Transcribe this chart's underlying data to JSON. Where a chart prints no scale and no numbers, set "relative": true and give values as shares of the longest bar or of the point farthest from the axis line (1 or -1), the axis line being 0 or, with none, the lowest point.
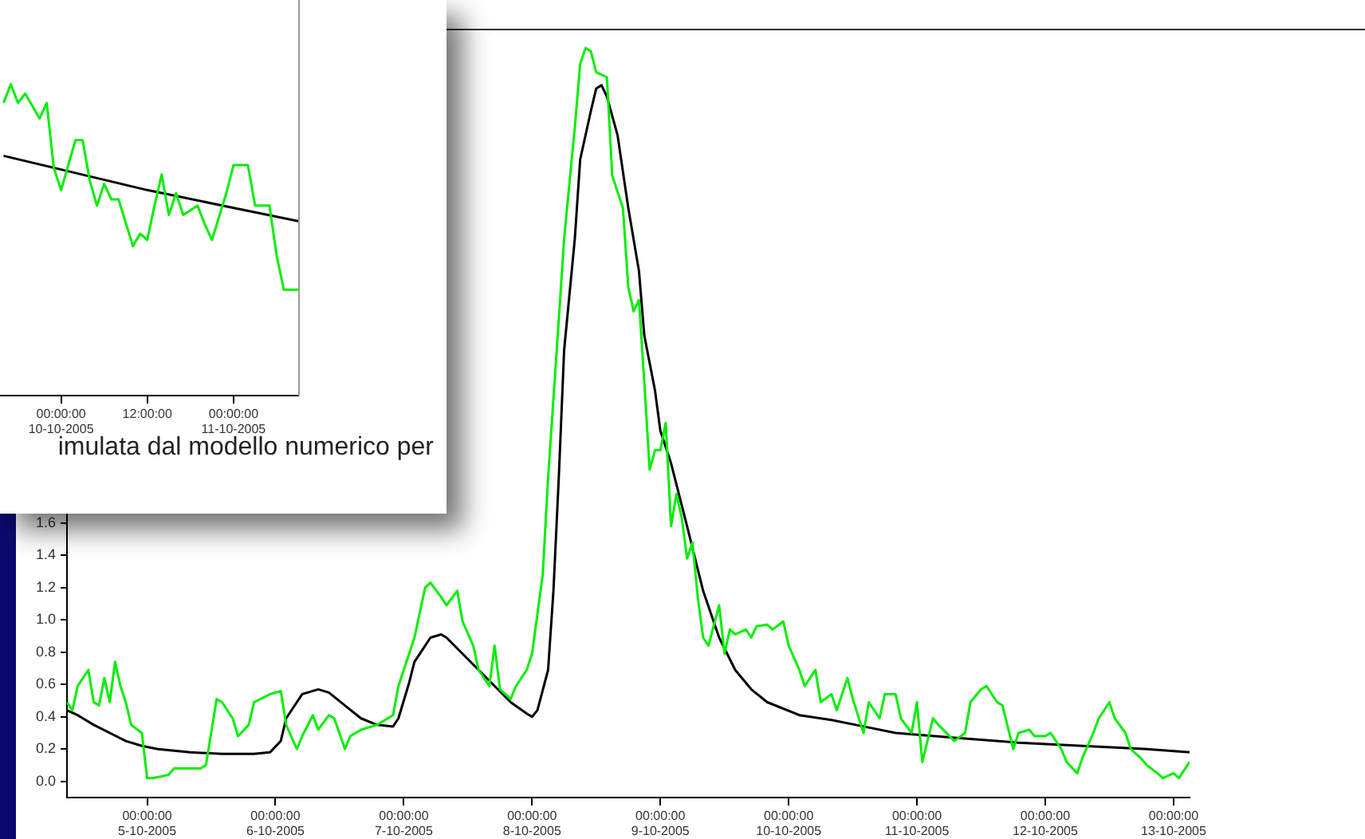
{
  "chart_data": [
    {
      "type": "line",
      "xlim": [
        "2005-10-04T09:00",
        "2005-10-13T03:00"
      ],
      "ylim": [
        -0.1,
        4.66
      ],
      "xticks": [
        {
          "value": "2005-10-05",
          "label": "00:00:00\n5-10-2005"
        },
        {
          "value": "2005-10-06",
          "label": "00:00:00\n6-10-2005"
        },
        {
          "value": "2005-10-07",
          "label": "00:00:00\n7-10-2005"
        },
        {
          "value": "2005-10-08",
          "label": "00:00:00\n8-10-2005"
        },
        {
          "value": "2005-10-09",
          "label": "00:00:00\n9-10-2005"
        },
        {
          "value": "2005-10-10",
          "label": "00:00:00\n10-10-2005"
        },
        {
          "value": "2005-10-11",
          "label": "00:00:00\n11-10-2005"
        },
        {
          "value": "2005-10-12",
          "label": "00:00:00\n12-10-2005"
        },
        {
          "value": "2005-10-13",
          "label": "00:00:00\n13-10-2005"
        }
      ],
      "yticks": [
        {
          "value": 0,
          "label": "0.0"
        },
        {
          "value": 0.2,
          "label": "0.2"
        },
        {
          "value": 0.4,
          "label": "0.4"
        },
        {
          "value": 0.6,
          "label": "0.6"
        },
        {
          "value": 0.8,
          "label": "0.8"
        },
        {
          "value": 1,
          "label": "1.0"
        },
        {
          "value": 1.2,
          "label": "1.2"
        },
        {
          "value": 1.4,
          "label": "1.4"
        },
        {
          "value": 1.6,
          "label": "1.6"
        }
      ],
      "marker": "none",
      "line_style": "solid",
      "series": [
        {
          "color": "#00ee00",
          "x": [
            "2005-10-04T09:00",
            "2005-10-04T10:00",
            "2005-10-04T11:00",
            "2005-10-04T13:00",
            "2005-10-04T14:00",
            "2005-10-04T15:00",
            "2005-10-04T16:00",
            "2005-10-04T17:00",
            "2005-10-04T18:00",
            "2005-10-04T19:00",
            "2005-10-04T20:00",
            "2005-10-04T21:00",
            "2005-10-04T23:00",
            "2005-10-05T00:00",
            "2005-10-05T01:00",
            "2005-10-05T04:00",
            "2005-10-05T05:00",
            "2005-10-05T10:00",
            "2005-10-05T11:00",
            "2005-10-05T13:00",
            "2005-10-05T14:00",
            "2005-10-05T16:00",
            "2005-10-05T17:00",
            "2005-10-05T19:00",
            "2005-10-05T20:00",
            "2005-10-05T23:00",
            "2005-10-06T01:00",
            "2005-10-06T02:00",
            "2005-10-06T04:00",
            "2005-10-06T05:00",
            "2005-10-06T07:00",
            "2005-10-06T08:00",
            "2005-10-06T10:00",
            "2005-10-06T11:00",
            "2005-10-06T13:00",
            "2005-10-06T14:00",
            "2005-10-06T16:00",
            "2005-10-06T19:00",
            "2005-10-06T22:00",
            "2005-10-06T23:00",
            "2005-10-07T01:00",
            "2005-10-07T02:00",
            "2005-10-07T04:00",
            "2005-10-07T05:00",
            "2005-10-07T07:00",
            "2005-10-07T08:00",
            "2005-10-07T10:00",
            "2005-10-07T11:00",
            "2005-10-07T13:00",
            "2005-10-07T14:00",
            "2005-10-07T16:00",
            "2005-10-07T17:00",
            "2005-10-07T18:00",
            "2005-10-07T19:00",
            "2005-10-07T20:00",
            "2005-10-07T21:00",
            "2005-10-07T23:00",
            "2005-10-08T00:00",
            "2005-10-08T02:00",
            "2005-10-08T03:00",
            "2005-10-08T05:00",
            "2005-10-08T06:00",
            "2005-10-08T08:00",
            "2005-10-08T09:00",
            "2005-10-08T10:00",
            "2005-10-08T11:00",
            "2005-10-08T12:00",
            "2005-10-08T14:00",
            "2005-10-08T15:00",
            "2005-10-08T17:00",
            "2005-10-08T18:00",
            "2005-10-08T19:00",
            "2005-10-08T20:00",
            "2005-10-08T21:00",
            "2005-10-08T22:00",
            "2005-10-08T23:00",
            "2005-10-09T00:00",
            "2005-10-09T01:00",
            "2005-10-09T02:00",
            "2005-10-09T03:00",
            "2005-10-09T04:00",
            "2005-10-09T05:00",
            "2005-10-09T06:00",
            "2005-10-09T07:00",
            "2005-10-09T08:00",
            "2005-10-09T09:00",
            "2005-10-09T11:00",
            "2005-10-09T12:00",
            "2005-10-09T13:00",
            "2005-10-09T14:00",
            "2005-10-09T16:00",
            "2005-10-09T17:00",
            "2005-10-09T18:00",
            "2005-10-09T20:00",
            "2005-10-09T21:00",
            "2005-10-09T23:00",
            "2005-10-10T00:00",
            "2005-10-10T02:00",
            "2005-10-10T03:00",
            "2005-10-10T05:00",
            "2005-10-10T06:00",
            "2005-10-10T08:00",
            "2005-10-10T09:00",
            "2005-10-10T11:00",
            "2005-10-10T12:00",
            "2005-10-10T14:00",
            "2005-10-10T15:00",
            "2005-10-10T17:00",
            "2005-10-10T18:00",
            "2005-10-10T20:00",
            "2005-10-10T21:00",
            "2005-10-10T23:00",
            "2005-10-11T00:00",
            "2005-10-11T01:00",
            "2005-10-11T03:00",
            "2005-10-11T04:00",
            "2005-10-11T07:00",
            "2005-10-11T09:00",
            "2005-10-11T10:00",
            "2005-10-11T12:00",
            "2005-10-11T13:00",
            "2005-10-11T15:00",
            "2005-10-11T16:00",
            "2005-10-11T18:00",
            "2005-10-11T19:00",
            "2005-10-11T21:00",
            "2005-10-11T22:00",
            "2005-10-12T00:00",
            "2005-10-12T01:00",
            "2005-10-12T03:00",
            "2005-10-12T04:00",
            "2005-10-12T06:00",
            "2005-10-12T07:00",
            "2005-10-12T09:00",
            "2005-10-12T10:00",
            "2005-10-12T12:00",
            "2005-10-12T13:00",
            "2005-10-12T15:00",
            "2005-10-12T16:00",
            "2005-10-12T18:00",
            "2005-10-12T19:00",
            "2005-10-12T21:00",
            "2005-10-12T22:00",
            "2005-10-13T00:00",
            "2005-10-13T01:00",
            "2005-10-13T03:00"
          ],
          "values": [
            0.49,
            0.44,
            0.59,
            0.69,
            0.49,
            0.47,
            0.64,
            0.49,
            0.74,
            0.59,
            0.49,
            0.35,
            0.3,
            0.02,
            0.02,
            0.04,
            0.08,
            0.08,
            0.1,
            0.51,
            0.49,
            0.39,
            0.28,
            0.35,
            0.49,
            0.54,
            0.56,
            0.35,
            0.2,
            0.28,
            0.41,
            0.32,
            0.41,
            0.39,
            0.2,
            0.28,
            0.32,
            0.35,
            0.41,
            0.59,
            0.79,
            0.89,
            1.2,
            1.23,
            1.14,
            1.09,
            1.18,
            0.99,
            0.84,
            0.69,
            0.59,
            0.84,
            0.57,
            0.54,
            0.51,
            0.59,
            0.69,
            0.79,
            1.28,
            1.88,
            2.86,
            3.36,
            4.05,
            4.44,
            4.54,
            4.52,
            4.39,
            4.36,
            3.75,
            3.55,
            3.06,
            2.91,
            2.98,
            2.47,
            1.93,
            2.05,
            2.05,
            2.22,
            1.58,
            1.78,
            1.63,
            1.38,
            1.48,
            1.14,
            0.89,
            0.84,
            1.09,
            0.79,
            0.94,
            0.91,
            0.94,
            0.89,
            0.96,
            0.97,
            0.94,
            0.99,
            0.84,
            0.69,
            0.59,
            0.69,
            0.49,
            0.54,
            0.44,
            0.64,
            0.51,
            0.3,
            0.49,
            0.39,
            0.54,
            0.54,
            0.39,
            0.3,
            0.49,
            0.12,
            0.39,
            0.35,
            0.25,
            0.3,
            0.49,
            0.57,
            0.59,
            0.49,
            0.47,
            0.2,
            0.3,
            0.32,
            0.28,
            0.28,
            0.3,
            0.2,
            0.12,
            0.05,
            0.15,
            0.3,
            0.39,
            0.49,
            0.39,
            0.3,
            0.2,
            0.14,
            0.1,
            0.05,
            0.02,
            0.05,
            0.02,
            0.12
          ]
        },
        {
          "color": "#000000",
          "x": [
            "2005-10-04T09:00",
            "2005-10-04T11:00",
            "2005-10-04T14:00",
            "2005-10-04T17:00",
            "2005-10-04T20:00",
            "2005-10-04T23:00",
            "2005-10-05T02:00",
            "2005-10-05T08:00",
            "2005-10-05T14:00",
            "2005-10-05T20:00",
            "2005-10-05T23:00",
            "2005-10-06T01:00",
            "2005-10-06T02:00",
            "2005-10-06T04:00",
            "2005-10-06T05:00",
            "2005-10-06T08:00",
            "2005-10-06T10:00",
            "2005-10-06T13:00",
            "2005-10-06T16:00",
            "2005-10-06T19:00",
            "2005-10-06T22:00",
            "2005-10-06T23:00",
            "2005-10-07T01:00",
            "2005-10-07T02:00",
            "2005-10-07T04:00",
            "2005-10-07T05:00",
            "2005-10-07T07:00",
            "2005-10-07T08:00",
            "2005-10-07T11:00",
            "2005-10-07T14:00",
            "2005-10-07T17:00",
            "2005-10-07T20:00",
            "2005-10-07T23:00",
            "2005-10-08T00:00",
            "2005-10-08T01:00",
            "2005-10-08T03:00",
            "2005-10-08T04:00",
            "2005-10-08T05:00",
            "2005-10-08T06:00",
            "2005-10-08T08:00",
            "2005-10-08T09:00",
            "2005-10-08T11:00",
            "2005-10-08T12:00",
            "2005-10-08T13:00",
            "2005-10-08T14:00",
            "2005-10-08T16:00",
            "2005-10-08T18:00",
            "2005-10-08T20:00",
            "2005-10-08T21:00",
            "2005-10-08T23:00",
            "2005-10-09T00:00",
            "2005-10-09T02:00",
            "2005-10-09T05:00",
            "2005-10-09T08:00",
            "2005-10-09T11:00",
            "2005-10-09T14:00",
            "2005-10-09T17:00",
            "2005-10-09T20:00",
            "2005-10-10T02:00",
            "2005-10-10T08:00",
            "2005-10-10T14:00",
            "2005-10-10T20:00",
            "2005-10-11T07:00",
            "2005-10-11T19:00",
            "2005-10-12T07:00",
            "2005-10-12T19:00",
            "2005-10-13T03:00"
          ],
          "values": [
            0.44,
            0.41,
            0.35,
            0.3,
            0.25,
            0.22,
            0.2,
            0.18,
            0.17,
            0.17,
            0.18,
            0.25,
            0.39,
            0.49,
            0.54,
            0.57,
            0.55,
            0.47,
            0.39,
            0.35,
            0.34,
            0.39,
            0.61,
            0.74,
            0.84,
            0.89,
            0.91,
            0.89,
            0.79,
            0.69,
            0.59,
            0.49,
            0.42,
            0.4,
            0.44,
            0.69,
            1.18,
            1.88,
            2.67,
            3.36,
            3.85,
            4.15,
            4.29,
            4.31,
            4.24,
            4.0,
            3.55,
            3.16,
            2.76,
            2.42,
            2.17,
            1.97,
            1.58,
            1.18,
            0.89,
            0.69,
            0.57,
            0.49,
            0.41,
            0.38,
            0.34,
            0.3,
            0.27,
            0.24,
            0.22,
            0.2,
            0.18
          ]
        }
      ]
    },
    {
      "type": "line",
      "relative": true,
      "tick_labels": "x",
      "marker": "none",
      "line_style": "solid",
      "xlim": [
        "2005-10-09T15:30",
        "2005-10-11T09:00"
      ],
      "xticks": [
        {
          "value": "2005-10-10",
          "label": "00:00:00\n10-10-2005"
        },
        {
          "value": "2005-10-10T12:00",
          "label": "12:00:00"
        },
        {
          "value": "2005-10-11",
          "label": "00:00:00\n11-10-2005"
        }
      ],
      "annotations": [
        "imulata dal modello numerico per"
      ],
      "series": [
        {
          "color": "#00ee00",
          "x": [
            "2005-10-09T16:00",
            "2005-10-09T17:00",
            "2005-10-09T18:00",
            "2005-10-09T19:00",
            "2005-10-09T21:00",
            "2005-10-09T22:00",
            "2005-10-09T23:00",
            "2005-10-10T00:00",
            "2005-10-10T02:00",
            "2005-10-10T03:00",
            "2005-10-10T04:00",
            "2005-10-10T05:00",
            "2005-10-10T06:00",
            "2005-10-10T07:00",
            "2005-10-10T08:00",
            "2005-10-10T10:00",
            "2005-10-10T11:00",
            "2005-10-10T12:00",
            "2005-10-10T13:00",
            "2005-10-10T14:00",
            "2005-10-10T15:00",
            "2005-10-10T16:00",
            "2005-10-10T17:00",
            "2005-10-10T19:00",
            "2005-10-10T20:00",
            "2005-10-10T21:00",
            "2005-10-10T23:00",
            "2005-10-11T00:00",
            "2005-10-11T02:00",
            "2005-10-11T03:00",
            "2005-10-11T05:00",
            "2005-10-11T06:00",
            "2005-10-11T07:00",
            "2005-10-11T09:00"
          ],
          "values": [
            0.94,
            1,
            0.94,
            0.97,
            0.89,
            0.94,
            0.73,
            0.66,
            0.82,
            0.82,
            0.69,
            0.61,
            0.68,
            0.63,
            0.63,
            0.48,
            0.52,
            0.5,
            0.61,
            0.71,
            0.58,
            0.65,
            0.58,
            0.61,
            0.55,
            0.5,
            0.65,
            0.74,
            0.74,
            0.61,
            0.61,
            0.45,
            0.34,
            0.34
          ]
        },
        {
          "color": "#000000",
          "x": [
            "2005-10-09T16:00",
            "2005-10-10T12:00",
            "2005-10-11T09:00"
          ],
          "values": [
            0.77,
            0.66,
            0.56
          ]
        }
      ]
    }
  ]
}
